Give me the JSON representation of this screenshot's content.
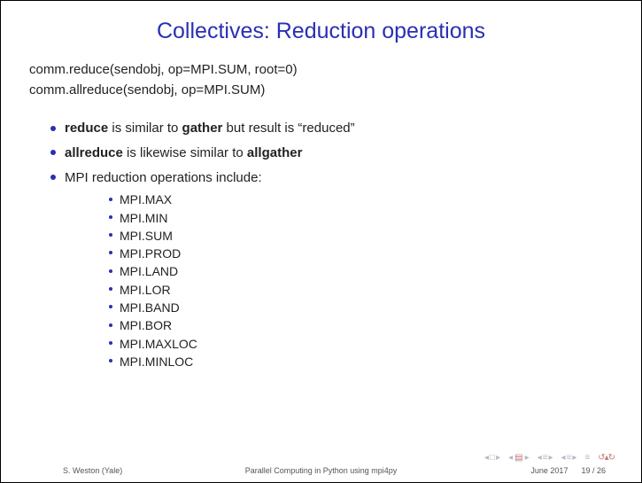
{
  "title": "Collectives: Reduction operations",
  "code": {
    "line1": "comm.reduce(sendobj, op=MPI.SUM, root=0)",
    "line2": "comm.allreduce(sendobj, op=MPI.SUM)"
  },
  "bullets": {
    "b1_pre": "reduce",
    "b1_mid1": " is similar to ",
    "b1_bold2": "gather",
    "b1_post": " but result is “reduced”",
    "b2_pre": "allreduce",
    "b2_mid": " is likewise similar to ",
    "b2_bold2": "allgather",
    "b3": "MPI reduction operations include:"
  },
  "ops": [
    "MPI.MAX",
    "MPI.MIN",
    "MPI.SUM",
    "MPI.PROD",
    "MPI.LAND",
    "MPI.LOR",
    "MPI.BAND",
    "MPI.BOR",
    "MPI.MAXLOC",
    "MPI.MINLOC"
  ],
  "footer": {
    "author": "S. Weston (Yale)",
    "talk": "Parallel Computing in Python using mpi4py",
    "date": "June 2017",
    "page": "19 / 26"
  },
  "colors": {
    "title": "#2a2fb4",
    "bullet": "#2a2fb4",
    "text": "#222222",
    "nav_muted": "#b8b8c8",
    "nav_accent": "#c07a7a",
    "background": "#ffffff"
  }
}
